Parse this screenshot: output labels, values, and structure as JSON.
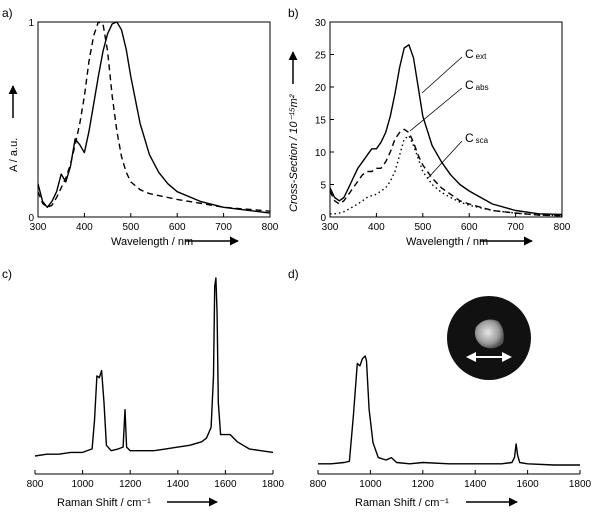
{
  "chart_data": [
    {
      "panel": "a)",
      "type": "line",
      "xlabel": "Wavelength / nm",
      "ylabel": "A / a.u.",
      "xlim": [
        300,
        800
      ],
      "ylim": [
        0,
        1
      ],
      "xticks": [
        "300",
        "400",
        "500",
        "600",
        "700",
        "800"
      ],
      "yticks": [
        "0",
        "1"
      ],
      "series": [
        {
          "style": "solid",
          "x": [
            300,
            310,
            320,
            330,
            340,
            350,
            360,
            370,
            380,
            390,
            400,
            410,
            420,
            430,
            440,
            450,
            460,
            470,
            480,
            490,
            500,
            520,
            540,
            560,
            580,
            600,
            650,
            700,
            750,
            800
          ],
          "y": [
            0.17,
            0.08,
            0.05,
            0.08,
            0.13,
            0.22,
            0.18,
            0.26,
            0.4,
            0.37,
            0.33,
            0.44,
            0.58,
            0.72,
            0.85,
            0.94,
            0.99,
            1.0,
            0.96,
            0.86,
            0.72,
            0.48,
            0.32,
            0.23,
            0.17,
            0.13,
            0.08,
            0.05,
            0.035,
            0.02
          ]
        },
        {
          "style": "dashed",
          "x": [
            300,
            310,
            320,
            330,
            340,
            350,
            360,
            370,
            380,
            390,
            400,
            410,
            420,
            430,
            440,
            450,
            460,
            470,
            480,
            490,
            500,
            520,
            540,
            560,
            580,
            600,
            650,
            700,
            750,
            800
          ],
          "y": [
            0.13,
            0.07,
            0.05,
            0.06,
            0.1,
            0.15,
            0.2,
            0.27,
            0.37,
            0.48,
            0.62,
            0.8,
            0.93,
            1.0,
            0.99,
            0.85,
            0.62,
            0.44,
            0.31,
            0.23,
            0.18,
            0.14,
            0.12,
            0.11,
            0.1,
            0.09,
            0.07,
            0.05,
            0.04,
            0.03
          ]
        }
      ]
    },
    {
      "panel": "b)",
      "type": "line",
      "xlabel": "Wavelength / nm",
      "ylabel": "Cross-Section / 10⁻¹⁵m²",
      "xlim": [
        300,
        800
      ],
      "ylim": [
        0,
        30
      ],
      "xticks": [
        "300",
        "400",
        "500",
        "600",
        "700",
        "800"
      ],
      "yticks": [
        "0",
        "5",
        "10",
        "15",
        "20",
        "25",
        "30"
      ],
      "series": [
        {
          "name": "C ext",
          "style": "solid",
          "x": [
            300,
            310,
            320,
            330,
            340,
            350,
            360,
            370,
            380,
            390,
            400,
            410,
            420,
            430,
            440,
            450,
            460,
            470,
            480,
            490,
            500,
            520,
            540,
            560,
            580,
            600,
            650,
            700,
            750,
            800
          ],
          "y": [
            4.5,
            3.0,
            2.5,
            3.0,
            4.5,
            6.0,
            7.5,
            8.5,
            9.5,
            10.5,
            10.5,
            11.5,
            13.0,
            15.5,
            19.0,
            23.0,
            26.0,
            26.5,
            24.5,
            20.0,
            15.5,
            11.0,
            8.5,
            6.5,
            5.0,
            4.0,
            2.0,
            1.0,
            0.5,
            0.4
          ]
        },
        {
          "name": "C abs",
          "style": "dashed",
          "x": [
            300,
            310,
            320,
            330,
            340,
            350,
            360,
            370,
            380,
            390,
            400,
            410,
            420,
            430,
            440,
            450,
            460,
            470,
            480,
            490,
            500,
            520,
            540,
            560,
            580,
            600,
            650,
            700,
            750,
            800
          ],
          "y": [
            4.0,
            2.5,
            2.0,
            2.5,
            3.5,
            4.5,
            5.5,
            6.5,
            7.0,
            7.0,
            7.5,
            7.5,
            8.5,
            10.0,
            12.0,
            13.0,
            13.5,
            13.0,
            11.5,
            9.5,
            8.0,
            6.0,
            4.5,
            3.5,
            2.5,
            2.0,
            1.0,
            0.6,
            0.3,
            0.2
          ]
        },
        {
          "name": "C sca",
          "style": "dotted",
          "x": [
            300,
            310,
            320,
            330,
            340,
            350,
            360,
            370,
            380,
            390,
            400,
            410,
            420,
            430,
            440,
            450,
            460,
            470,
            480,
            490,
            500,
            520,
            540,
            560,
            580,
            600,
            650,
            700,
            750,
            800
          ],
          "y": [
            0.5,
            0.5,
            0.6,
            0.8,
            1.2,
            1.6,
            2.0,
            2.5,
            3.0,
            3.3,
            3.5,
            4.0,
            4.5,
            5.5,
            7.0,
            9.5,
            12.0,
            12.5,
            11.0,
            9.0,
            7.0,
            5.0,
            3.8,
            3.0,
            2.3,
            1.8,
            1.0,
            0.6,
            0.3,
            0.2
          ]
        }
      ],
      "annotations": [
        {
          "text": "C",
          "sub": "ext"
        },
        {
          "text": "C",
          "sub": "abs"
        },
        {
          "text": "C",
          "sub": "sca"
        }
      ]
    },
    {
      "panel": "c)",
      "type": "line",
      "xlabel": "Raman Shift / cm⁻¹",
      "xlim": [
        800,
        1800
      ],
      "xticks": [
        "800",
        "1000",
        "1200",
        "1400",
        "1600",
        "1800"
      ],
      "series": [
        {
          "style": "solid",
          "x": [
            800,
            850,
            900,
            950,
            1000,
            1040,
            1050,
            1060,
            1070,
            1080,
            1090,
            1100,
            1120,
            1150,
            1170,
            1178,
            1185,
            1200,
            1250,
            1300,
            1350,
            1400,
            1450,
            1500,
            1520,
            1540,
            1550,
            1555,
            1560,
            1565,
            1570,
            1580,
            1600,
            1620,
            1650,
            1700,
            1750,
            1800
          ],
          "y": [
            0.0,
            0.01,
            0.01,
            0.02,
            0.02,
            0.04,
            0.2,
            0.45,
            0.44,
            0.48,
            0.3,
            0.06,
            0.03,
            0.04,
            0.05,
            0.26,
            0.05,
            0.03,
            0.03,
            0.03,
            0.04,
            0.05,
            0.06,
            0.08,
            0.1,
            0.16,
            0.45,
            0.95,
            1.0,
            0.8,
            0.3,
            0.12,
            0.12,
            0.12,
            0.08,
            0.04,
            0.03,
            0.02
          ]
        }
      ]
    },
    {
      "panel": "d)",
      "type": "line",
      "xlabel": "Raman Shift / cm⁻¹",
      "xlim": [
        800,
        1800
      ],
      "xticks": [
        "800",
        "1000",
        "1200",
        "1400",
        "1600",
        "1800"
      ],
      "series": [
        {
          "style": "solid",
          "x": [
            800,
            850,
            900,
            920,
            935,
            950,
            960,
            970,
            980,
            985,
            995,
            1010,
            1030,
            1060,
            1080,
            1100,
            1150,
            1200,
            1300,
            1400,
            1500,
            1540,
            1550,
            1556,
            1562,
            1570,
            1600,
            1700,
            1800
          ],
          "y": [
            0.01,
            0.01,
            0.02,
            0.03,
            0.4,
            0.82,
            0.8,
            0.86,
            0.88,
            0.84,
            0.45,
            0.18,
            0.06,
            0.04,
            0.06,
            0.02,
            0.01,
            0.02,
            0.01,
            0.01,
            0.01,
            0.02,
            0.06,
            0.17,
            0.08,
            0.02,
            0.01,
            0.0,
            0.0
          ]
        }
      ]
    }
  ]
}
